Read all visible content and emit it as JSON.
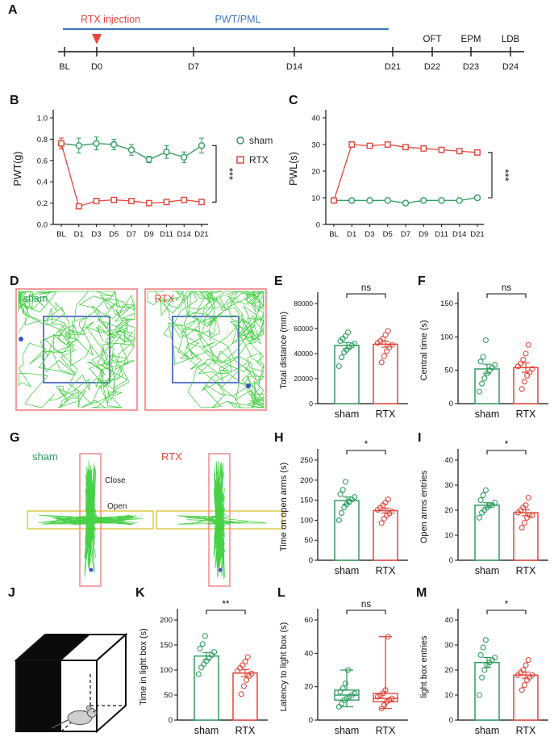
{
  "colors": {
    "sham_green": "#2f9e5f",
    "rtx_red": "#e5453a",
    "trace_green": "#33cc33",
    "timeline_blue": "#3c76c4",
    "box_red": "#f08080",
    "box_blue": "#3b53c4",
    "epm_yellow": "#ddc84a",
    "epm_pink": "#ef8a8a"
  },
  "panels": {
    "A": {
      "label": "A",
      "rtx_injection": "RTX injection",
      "pwt_pml": "PWT/PML",
      "ticks": [
        "BL",
        "D0",
        "D7",
        "D14",
        "D21",
        "D22",
        "D23",
        "D24"
      ],
      "top_tests": [
        "OFT",
        "EPM",
        "LDB"
      ]
    },
    "B": {
      "label": "B"
    },
    "C": {
      "label": "C"
    },
    "D": {
      "label": "D",
      "fields": [
        "sham",
        "RTX"
      ]
    },
    "E": {
      "label": "E"
    },
    "F": {
      "label": "F"
    },
    "G": {
      "label": "G",
      "mazes": [
        "sham",
        "RTX"
      ],
      "close_label": "Close",
      "open_label": "Open"
    },
    "H": {
      "label": "H"
    },
    "I": {
      "label": "I"
    },
    "J": {
      "label": "J"
    },
    "K": {
      "label": "K"
    },
    "L": {
      "label": "L"
    },
    "M": {
      "label": "M"
    }
  },
  "chart_data": [
    {
      "id": "B",
      "type": "line",
      "ylabel": "PWT(g)",
      "ylim": [
        0,
        1.0
      ],
      "yticks": [
        "0.0",
        "0.2",
        "0.4",
        "0.6",
        "0.8",
        "1.0"
      ],
      "categories": [
        "BL",
        "D1",
        "D3",
        "D5",
        "D7",
        "D9",
        "D11",
        "D14",
        "D21"
      ],
      "series": [
        {
          "name": "sham",
          "marker": "circle",
          "values": [
            0.76,
            0.74,
            0.76,
            0.75,
            0.7,
            0.61,
            0.68,
            0.63,
            0.74
          ],
          "errors": [
            0.05,
            0.07,
            0.06,
            0.05,
            0.05,
            0.03,
            0.06,
            0.05,
            0.07
          ]
        },
        {
          "name": "RTX",
          "marker": "square",
          "values": [
            0.76,
            0.17,
            0.22,
            0.23,
            0.22,
            0.2,
            0.21,
            0.23,
            0.21
          ],
          "errors": [
            0.05,
            0.02,
            0.02,
            0.02,
            0.02,
            0.02,
            0.02,
            0.02,
            0.02
          ]
        }
      ],
      "legend": true,
      "significance": "***"
    },
    {
      "id": "C",
      "type": "line",
      "ylabel": "PWL(s)",
      "ylim": [
        0,
        40
      ],
      "yticks": [
        0,
        10,
        20,
        30,
        40
      ],
      "categories": [
        "BL",
        "D1",
        "D3",
        "D5",
        "D7",
        "D9",
        "D11",
        "D14",
        "D21"
      ],
      "series": [
        {
          "name": "sham",
          "marker": "circle",
          "values": [
            9,
            9,
            9,
            9,
            8,
            9,
            9,
            9,
            10
          ],
          "errors": [
            0.5,
            0.5,
            0.5,
            0.5,
            0.5,
            0.5,
            0.5,
            0.5,
            0.8
          ]
        },
        {
          "name": "RTX",
          "marker": "square",
          "values": [
            9,
            30,
            29.5,
            30,
            29,
            28.5,
            28,
            27.5,
            27
          ],
          "errors": [
            0.5,
            1,
            0.8,
            0.8,
            0.8,
            0.8,
            0.8,
            0.8,
            1
          ]
        }
      ],
      "legend": false,
      "significance": "***"
    },
    {
      "id": "E",
      "type": "bar",
      "ylabel": "Total distance (mm)",
      "ylim": [
        0,
        80000
      ],
      "yticks": [
        0,
        20000,
        40000,
        60000,
        80000
      ],
      "significance": "ns",
      "groups": [
        {
          "name": "sham",
          "mean": 46500,
          "sem": 2400,
          "points": [
            30000,
            37000,
            41000,
            43000,
            45000,
            46500,
            48000,
            50000,
            52000,
            54000,
            57000
          ]
        },
        {
          "name": "RTX",
          "mean": 47500,
          "sem": 2400,
          "points": [
            33000,
            38000,
            42000,
            45000,
            47000,
            48500,
            50000,
            52000,
            55000,
            58000
          ]
        }
      ]
    },
    {
      "id": "F",
      "type": "bar",
      "ylabel": "Central time (s)",
      "ylim": [
        0,
        150
      ],
      "yticks": [
        0,
        50,
        100,
        150
      ],
      "significance": "ns",
      "groups": [
        {
          "name": "sham",
          "mean": 52,
          "sem": 7,
          "points": [
            18,
            30,
            38,
            45,
            50,
            54,
            58,
            63,
            70,
            95
          ]
        },
        {
          "name": "RTX",
          "mean": 54,
          "sem": 7,
          "points": [
            22,
            33,
            42,
            47,
            52,
            56,
            60,
            66,
            75,
            88
          ]
        }
      ]
    },
    {
      "id": "H",
      "type": "bar",
      "ylabel": "Time on open arms (s)",
      "ylim": [
        0,
        250
      ],
      "yticks": [
        0,
        50,
        100,
        150,
        200,
        250
      ],
      "significance": "*",
      "groups": [
        {
          "name": "sham",
          "mean": 149,
          "sem": 9,
          "points": [
            100,
            118,
            132,
            140,
            147,
            152,
            158,
            165,
            176,
            196
          ]
        },
        {
          "name": "RTX",
          "mean": 124,
          "sem": 6,
          "points": [
            93,
            104,
            112,
            117,
            122,
            126,
            131,
            137,
            144,
            152
          ]
        }
      ]
    },
    {
      "id": "I",
      "type": "bar",
      "ylabel": "Open arms entries",
      "ylim": [
        0,
        40
      ],
      "yticks": [
        0,
        10,
        20,
        30,
        40
      ],
      "significance": "*",
      "groups": [
        {
          "name": "sham",
          "mean": 22,
          "sem": 1,
          "points": [
            17,
            19,
            20,
            21,
            22,
            22,
            23,
            24,
            26,
            28
          ]
        },
        {
          "name": "RTX",
          "mean": 19,
          "sem": 1.2,
          "points": [
            13,
            15,
            17,
            18,
            18,
            19,
            20,
            21,
            22,
            25
          ]
        }
      ]
    },
    {
      "id": "K",
      "type": "bar",
      "ylabel": "Time in light box (s)",
      "ylim": [
        0,
        200
      ],
      "yticks": [
        0,
        50,
        100,
        150,
        200
      ],
      "significance": "**",
      "groups": [
        {
          "name": "sham",
          "mean": 128,
          "sem": 7,
          "points": [
            92,
            105,
            112,
            118,
            124,
            130,
            136,
            143,
            152,
            168
          ]
        },
        {
          "name": "RTX",
          "mean": 94,
          "sem": 7,
          "points": [
            52,
            68,
            80,
            88,
            93,
            98,
            104,
            110,
            117,
            126
          ]
        }
      ]
    },
    {
      "id": "L",
      "type": "box",
      "ylabel": "Latency to light box (s)",
      "ylim": [
        0,
        60
      ],
      "yticks": [
        0,
        20,
        40,
        60
      ],
      "significance": "ns",
      "groups": [
        {
          "name": "sham",
          "median": 15,
          "q1": 12,
          "q3": 18,
          "min": 8,
          "max": 30,
          "points": [
            8,
            10,
            12,
            13,
            14,
            15,
            16,
            17,
            19,
            22,
            30
          ]
        },
        {
          "name": "RTX",
          "median": 13,
          "q1": 11,
          "q3": 16,
          "min": 7,
          "max": 50,
          "points": [
            7,
            9,
            11,
            12,
            13,
            14,
            15,
            16,
            18,
            50
          ]
        }
      ]
    },
    {
      "id": "M",
      "type": "bar",
      "ylabel": "light box entries",
      "ylim": [
        0,
        40
      ],
      "yticks": [
        0,
        10,
        20,
        30,
        40
      ],
      "significance": "*",
      "groups": [
        {
          "name": "sham",
          "mean": 23,
          "sem": 2,
          "points": [
            10,
            17,
            20,
            22,
            23,
            24,
            25,
            26,
            29,
            32
          ]
        },
        {
          "name": "RTX",
          "mean": 18,
          "sem": 1.2,
          "points": [
            12,
            14,
            16,
            17,
            18,
            18,
            19,
            20,
            22,
            24
          ]
        }
      ]
    }
  ]
}
